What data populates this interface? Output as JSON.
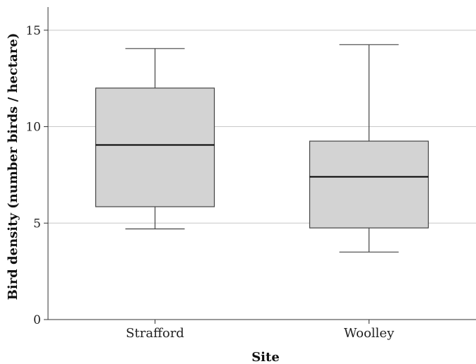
{
  "chart_data": {
    "type": "box",
    "xlabel": "Site",
    "ylabel": "Bird density (number birds / hectare)",
    "ylim": [
      0,
      16.2
    ],
    "yticks": [
      0,
      5,
      10,
      15
    ],
    "grid": true,
    "categories": [
      "Strafford",
      "Woolley"
    ],
    "boxes": [
      {
        "category": "Strafford",
        "min": 4.7,
        "q1": 5.85,
        "median": 9.05,
        "q3": 12.0,
        "max": 14.05
      },
      {
        "category": "Woolley",
        "min": 3.5,
        "q1": 4.75,
        "median": 7.4,
        "q3": 9.25,
        "max": 14.25
      }
    ],
    "box_color": "#d3d3d3"
  }
}
